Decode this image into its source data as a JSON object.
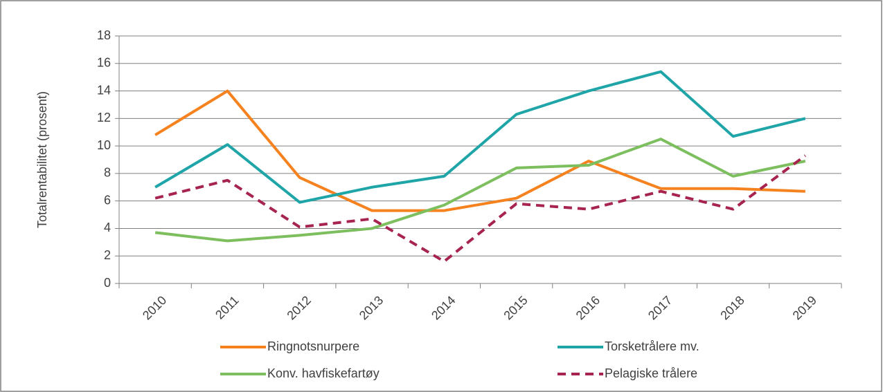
{
  "chart_data": {
    "type": "line",
    "y_label": "Totalrentabilitet (prosent)",
    "categories": [
      "2010",
      "2011",
      "2012",
      "2013",
      "2014",
      "2015",
      "2016",
      "2017",
      "2018",
      "2019"
    ],
    "series": [
      {
        "name": "Ringnotsnurpere",
        "color": "#f5821f",
        "style": "solid",
        "values": [
          10.8,
          14.0,
          7.7,
          5.3,
          5.3,
          6.2,
          8.9,
          6.9,
          6.9,
          6.7
        ]
      },
      {
        "name": "Torsketrålere mv.",
        "color": "#1fa5a8",
        "style": "solid",
        "values": [
          7.0,
          10.1,
          5.9,
          7.0,
          7.8,
          12.3,
          14.0,
          15.4,
          10.7,
          12.0
        ]
      },
      {
        "name": "Konv. havfiskefartøy",
        "color": "#7dbf5e",
        "style": "solid",
        "values": [
          3.7,
          3.1,
          3.5,
          4.0,
          5.7,
          8.4,
          8.6,
          10.5,
          7.8,
          8.9
        ]
      },
      {
        "name": "Pelagiske trålere",
        "color": "#a6244e",
        "style": "dashed",
        "values": [
          6.2,
          7.5,
          4.1,
          4.7,
          1.6,
          5.8,
          5.4,
          6.7,
          5.4,
          9.3
        ]
      }
    ],
    "ylim": [
      0,
      18
    ],
    "yticks": [
      0,
      2,
      4,
      6,
      8,
      10,
      12,
      14,
      16,
      18
    ],
    "grid": true,
    "legend": "bottom"
  }
}
